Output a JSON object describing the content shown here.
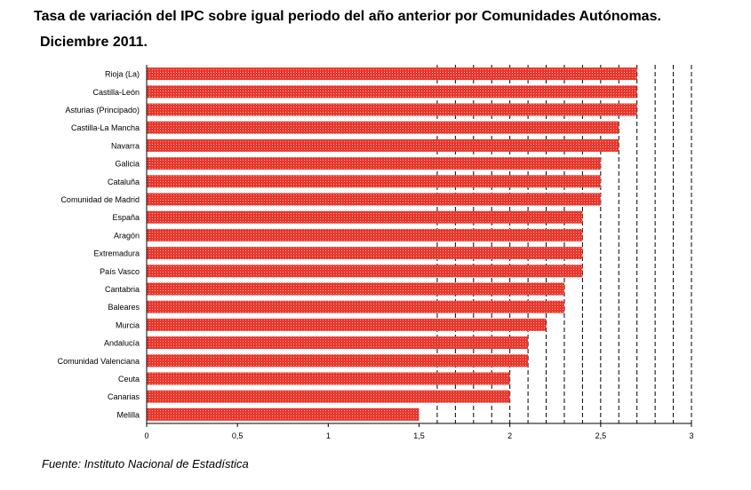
{
  "title_line1": "Tasa de variación del IPC sobre igual periodo del año anterior por Comunidades Autónomas.",
  "title_line2": "Diciembre 2011.",
  "source": "Fuente: Instituto Nacional de Estadística",
  "colors": {
    "bar": "#e8372c",
    "bar_hatch": "#f7a9a0",
    "axis": "#000000",
    "grid": "#000000"
  },
  "chart_data": {
    "type": "bar",
    "orientation": "horizontal",
    "title": "Tasa de variación del IPC sobre igual periodo del año anterior por Comunidades Autónomas. Diciembre 2011.",
    "categories": [
      "Rioja (La)",
      "Castilla-León",
      "Asturias (Principado)",
      "Castilla-La Mancha",
      "Navarra",
      "Galicia",
      "Cataluña",
      "Comunidad de Madrid",
      "España",
      "Aragón",
      "Extremadura",
      "País Vasco",
      "Cantabria",
      "Baleares",
      "Murcia",
      "Andalucía",
      "Comunidad Valenciana",
      "Ceuta",
      "Canarias",
      "Melilla"
    ],
    "values": [
      2.7,
      2.7,
      2.7,
      2.6,
      2.6,
      2.5,
      2.5,
      2.5,
      2.4,
      2.4,
      2.4,
      2.4,
      2.3,
      2.3,
      2.2,
      2.1,
      2.1,
      2.0,
      2.0,
      1.5
    ],
    "xlim": [
      0,
      3
    ],
    "xticks": [
      "0",
      "0,5",
      "1",
      "1,5",
      "2",
      "2,5",
      "3"
    ],
    "xtick_values": [
      0,
      0.5,
      1,
      1.5,
      2,
      2.5,
      3
    ],
    "gridlines_dashed": [
      1.6,
      1.7,
      1.8,
      1.9,
      2.0,
      2.1,
      2.2,
      2.3,
      2.4,
      2.5,
      2.6,
      2.7,
      2.8,
      2.9,
      3.0
    ],
    "grid": true
  }
}
